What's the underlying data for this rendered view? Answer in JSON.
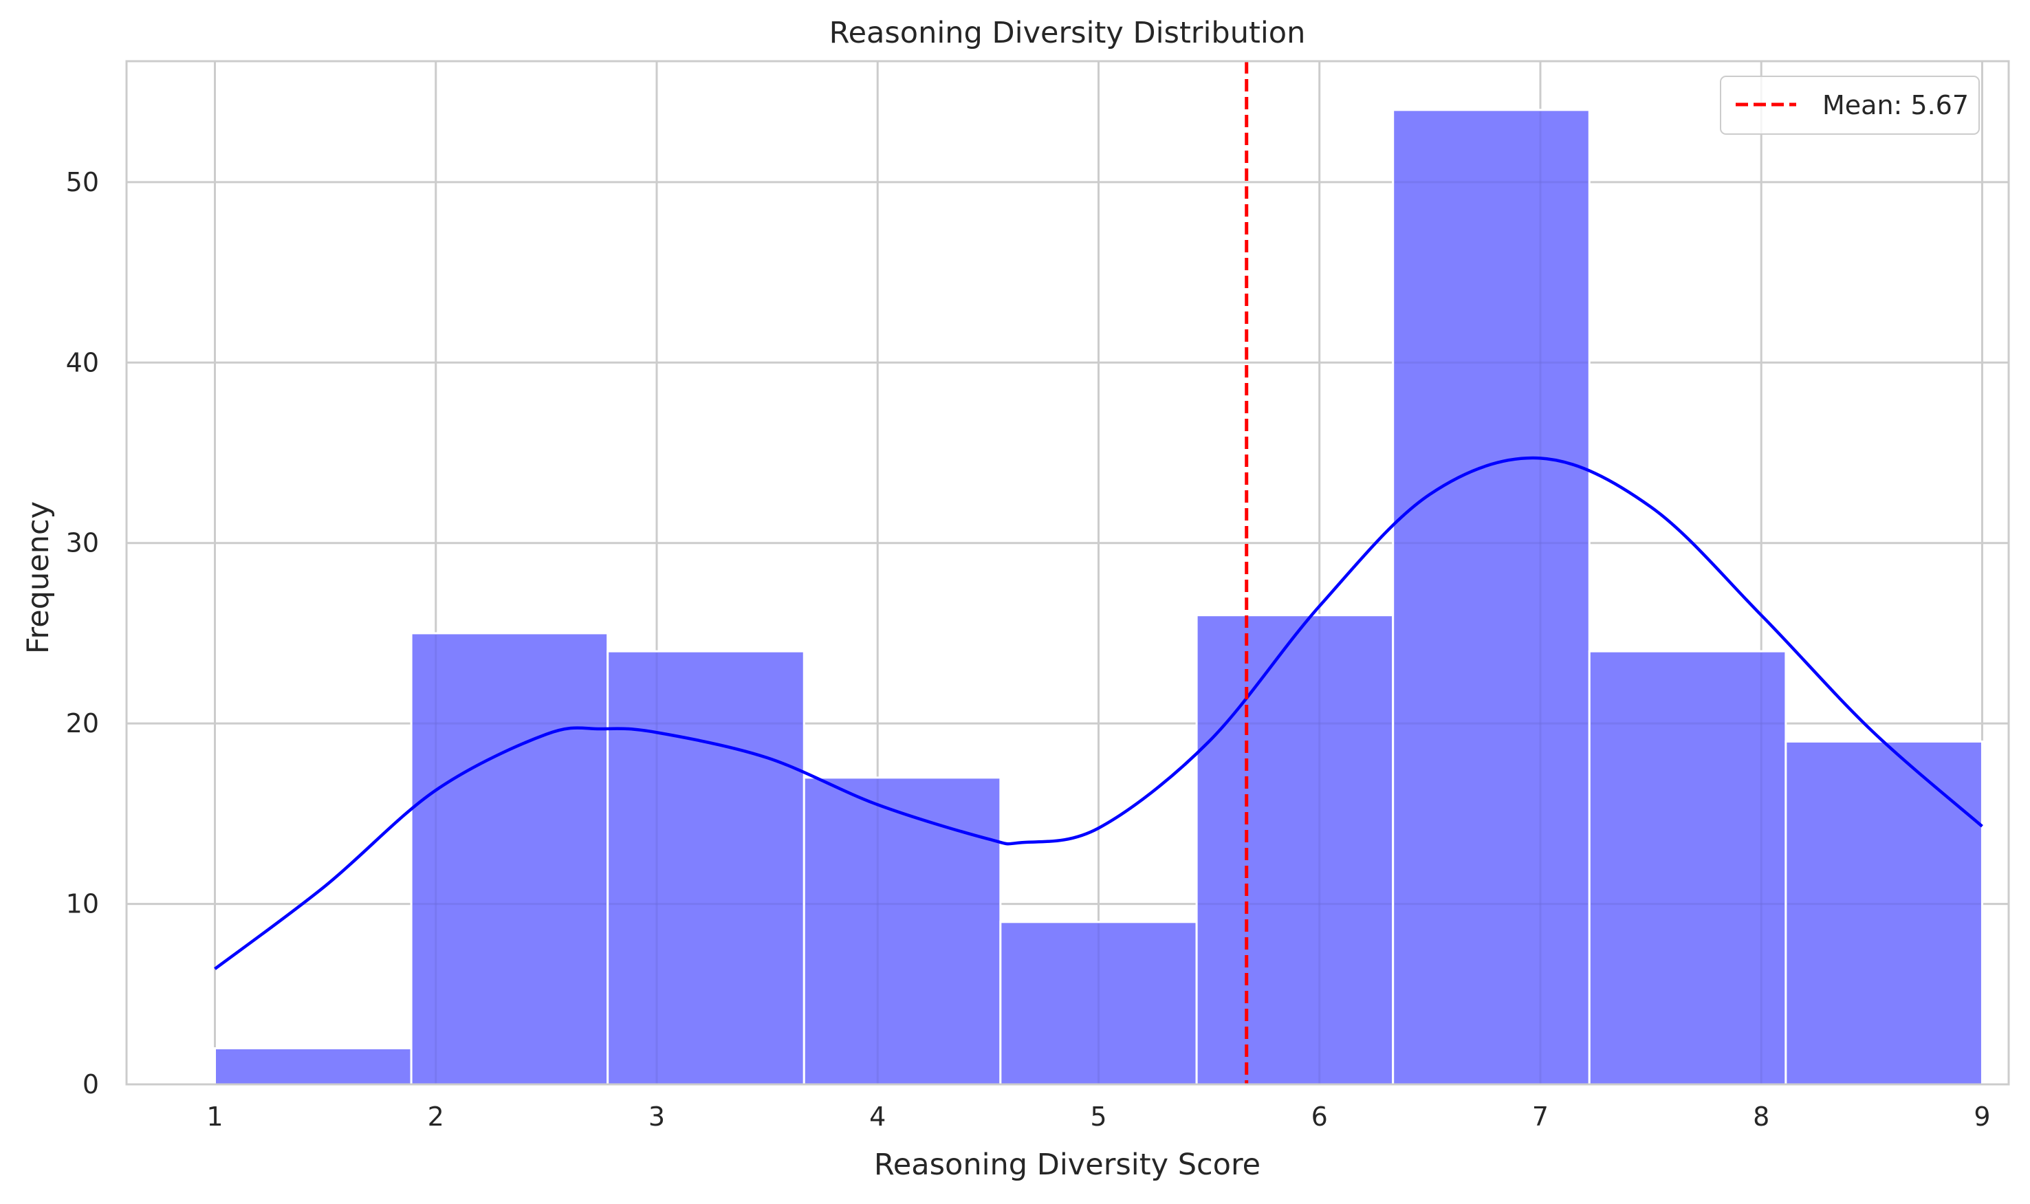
{
  "chart_data": {
    "type": "histogram",
    "title": "Reasoning Diversity Distribution",
    "xlabel": "Reasoning Diversity Score",
    "ylabel": "Frequency",
    "xlim": [
      0.6,
      9.12
    ],
    "ylim": [
      0,
      56.7
    ],
    "xticks": [
      1,
      2,
      3,
      4,
      5,
      6,
      7,
      8,
      9
    ],
    "yticks": [
      0,
      10,
      20,
      30,
      40,
      50
    ],
    "grid": true,
    "bar_color": "#8080ff",
    "bar_edge_color": "#ffffff",
    "kde_color": "#0000ff",
    "mean_line_color": "#ff0000",
    "bins": [
      {
        "start": 1.0,
        "end": 1.889,
        "count": 2
      },
      {
        "start": 1.889,
        "end": 2.778,
        "count": 25
      },
      {
        "start": 2.778,
        "end": 3.667,
        "count": 24
      },
      {
        "start": 3.667,
        "end": 4.556,
        "count": 17
      },
      {
        "start": 4.556,
        "end": 5.444,
        "count": 9
      },
      {
        "start": 5.444,
        "end": 6.333,
        "count": 26
      },
      {
        "start": 6.333,
        "end": 7.222,
        "count": 54
      },
      {
        "start": 7.222,
        "end": 8.111,
        "count": 24
      },
      {
        "start": 8.111,
        "end": 9.0,
        "count": 19
      }
    ],
    "kde": {
      "x": [
        1.0,
        1.5,
        2.0,
        2.5,
        2.75,
        3.0,
        3.5,
        4.0,
        4.5,
        4.65,
        5.0,
        5.5,
        6.0,
        6.5,
        7.0,
        7.5,
        8.0,
        8.5,
        9.0
      ],
      "y": [
        6.4,
        11.0,
        16.3,
        19.4,
        19.7,
        19.5,
        18.1,
        15.5,
        13.6,
        13.4,
        14.2,
        19.0,
        26.5,
        32.7,
        34.7,
        32.0,
        26.0,
        19.6,
        14.3
      ]
    },
    "mean": 5.67,
    "legend": {
      "label": "Mean: 5.67",
      "position": "upper-right"
    }
  }
}
